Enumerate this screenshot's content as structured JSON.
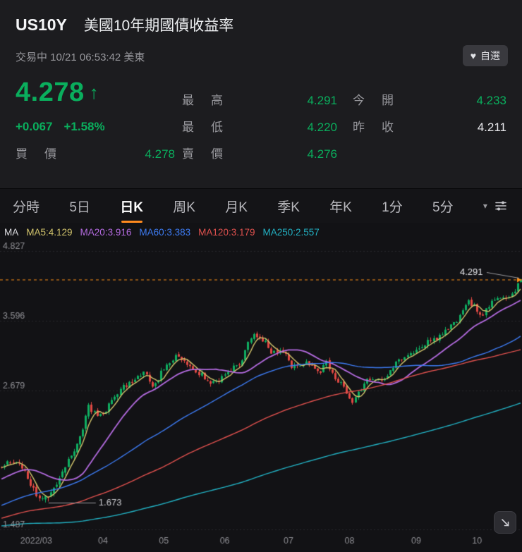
{
  "header": {
    "symbol": "US10Y",
    "name": "美國10年期國債收益率",
    "status_line": "交易中 10/21 06:53:42 美東",
    "watchlist_label": "自選",
    "price": "4.278",
    "change": "+0.067",
    "change_pct": "+1.58%",
    "fields": {
      "high_label": "最高",
      "high": "4.291",
      "low_label": "最低",
      "low": "4.220",
      "open_label": "今開",
      "open": "4.233",
      "prev_close_label": "昨收",
      "prev_close": "4.211",
      "bid_label": "買價",
      "bid": "4.278",
      "ask_label": "賣價",
      "ask": "4.276"
    }
  },
  "tabs": [
    "分時",
    "5日",
    "日K",
    "周K",
    "月K",
    "季K",
    "年K",
    "1分",
    "5分"
  ],
  "active_tab": "日K",
  "ma_legend": {
    "prefix": "MA",
    "items": [
      {
        "label": "MA5:4.129",
        "color": "#d2c46c"
      },
      {
        "label": "MA20:3.916",
        "color": "#b46be0"
      },
      {
        "label": "MA60:3.383",
        "color": "#3d7bf2"
      },
      {
        "label": "MA120:3.179",
        "color": "#e0514e"
      },
      {
        "label": "MA250:2.557",
        "color": "#22b0c2"
      }
    ]
  },
  "ui_colors": {
    "up_green": "#0aae5d",
    "down_red": "#e04843",
    "tab_orange": "#ff8a1e",
    "header_bg": "#1c1c1f",
    "chart_bg": "#121215"
  },
  "chart_data": {
    "type": "candlestick",
    "y_scale": "log",
    "y_ticks": [
      4.827,
      3.596,
      2.679,
      1.487
    ],
    "x_ticks": [
      {
        "i": 262,
        "label": "2022/03"
      },
      {
        "i": 285,
        "label": "04"
      },
      {
        "i": 306,
        "label": "05"
      },
      {
        "i": 327,
        "label": "06"
      },
      {
        "i": 349,
        "label": "07"
      },
      {
        "i": 370,
        "label": "08"
      },
      {
        "i": 393,
        "label": "09"
      },
      {
        "i": 414,
        "label": "10"
      }
    ],
    "total_days": 430,
    "visible_start": 250,
    "current_price": 4.278,
    "prev_close": 4.211,
    "last_candle": {
      "open": 4.233,
      "high": 4.291,
      "low": 4.22,
      "close": 4.278
    },
    "high_annotation": {
      "value": 4.291,
      "day": 429
    },
    "low_annotation": {
      "value": 1.673,
      "day": 266
    },
    "ma_periods": [
      5,
      20,
      60,
      120,
      250
    ],
    "colors": {
      "up": "#0fae61",
      "down": "#e04843",
      "dashed": "#ff9016",
      "grid": "#28282d",
      "axis_text": "#8f8f94",
      "annotation_text": "#e6e6ea",
      "ma": [
        "#d2c46c",
        "#b46be0",
        "#3d7bf2",
        "#e0514e",
        "#22b0c2"
      ]
    },
    "anchors": [
      [
        0,
        1.45
      ],
      [
        20,
        1.72
      ],
      [
        45,
        1.6
      ],
      [
        75,
        1.45
      ],
      [
        100,
        1.29
      ],
      [
        113,
        1.19
      ],
      [
        135,
        1.31
      ],
      [
        160,
        1.52
      ],
      [
        180,
        1.58
      ],
      [
        200,
        1.44
      ],
      [
        210,
        1.49
      ],
      [
        222,
        1.66
      ],
      [
        235,
        1.78
      ],
      [
        248,
        1.93
      ],
      [
        256,
        1.99
      ],
      [
        259,
        1.87
      ],
      [
        262,
        1.73
      ],
      [
        264,
        1.71
      ],
      [
        266,
        1.7
      ],
      [
        268,
        1.76
      ],
      [
        271,
        1.87
      ],
      [
        274,
        2.05
      ],
      [
        277,
        2.2
      ],
      [
        280,
        2.48
      ],
      [
        283,
        2.4
      ],
      [
        286,
        2.42
      ],
      [
        289,
        2.62
      ],
      [
        292,
        2.72
      ],
      [
        296,
        2.82
      ],
      [
        299,
        2.86
      ],
      [
        302,
        2.76
      ],
      [
        305,
        2.9
      ],
      [
        308,
        3.02
      ],
      [
        310,
        3.1
      ],
      [
        313,
        2.98
      ],
      [
        316,
        2.9
      ],
      [
        319,
        2.86
      ],
      [
        322,
        2.76
      ],
      [
        325,
        2.8
      ],
      [
        328,
        2.92
      ],
      [
        331,
        2.98
      ],
      [
        333,
        3.05
      ],
      [
        335,
        3.32
      ],
      [
        337,
        3.47
      ],
      [
        339,
        3.32
      ],
      [
        341,
        3.26
      ],
      [
        343,
        3.14
      ],
      [
        346,
        3.2
      ],
      [
        348,
        3.1
      ],
      [
        350,
        2.92
      ],
      [
        352,
        2.94
      ],
      [
        355,
        3.08
      ],
      [
        357,
        2.97
      ],
      [
        360,
        2.94
      ],
      [
        362,
        3.01
      ],
      [
        365,
        2.86
      ],
      [
        368,
        2.72
      ],
      [
        371,
        2.6
      ],
      [
        374,
        2.72
      ],
      [
        377,
        2.8
      ],
      [
        380,
        2.86
      ],
      [
        383,
        2.84
      ],
      [
        385,
        2.94
      ],
      [
        387,
        3.04
      ],
      [
        390,
        3.09
      ],
      [
        392,
        3.13
      ],
      [
        395,
        3.22
      ],
      [
        398,
        3.3
      ],
      [
        400,
        3.35
      ],
      [
        402,
        3.43
      ],
      [
        404,
        3.5
      ],
      [
        406,
        3.54
      ],
      [
        408,
        3.64
      ],
      [
        411,
        3.96
      ],
      [
        413,
        3.84
      ],
      [
        415,
        3.7
      ],
      [
        416,
        3.64
      ],
      [
        418,
        3.82
      ],
      [
        420,
        3.92
      ],
      [
        422,
        3.97
      ],
      [
        424,
        4.01
      ],
      [
        426,
        4.1
      ],
      [
        427,
        4.15
      ],
      [
        428,
        4.211
      ],
      [
        429,
        4.278
      ]
    ]
  }
}
